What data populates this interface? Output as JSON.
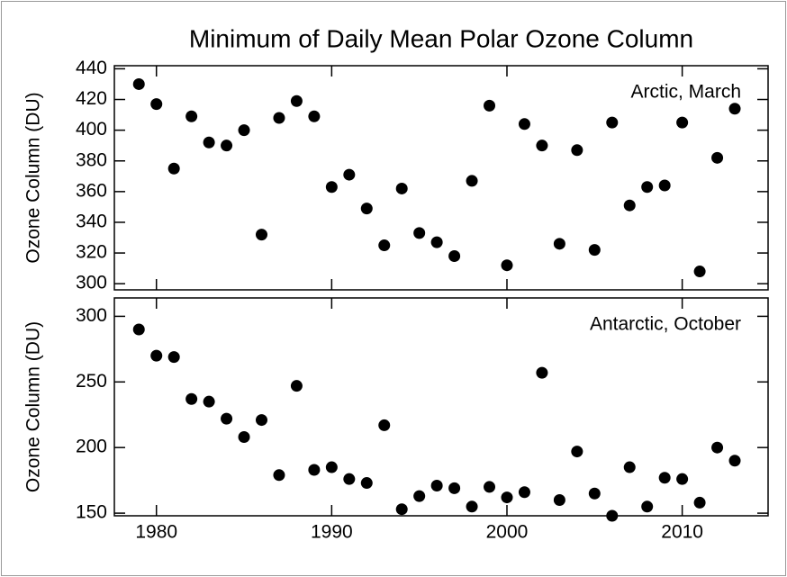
{
  "chart_data": [
    {
      "type": "line",
      "title": "Minimum of Daily Mean Polar Ozone Column",
      "annotation": "Arctic, March",
      "ylabel": "Ozone Column (DU)",
      "x": [
        1979,
        1980,
        1981,
        1982,
        1983,
        1984,
        1985,
        1986,
        1987,
        1988,
        1989,
        1990,
        1991,
        1992,
        1993,
        1994,
        1995,
        1996,
        1997,
        1998,
        1999,
        2000,
        2001,
        2002,
        2003,
        2004,
        2005,
        2006,
        2007,
        2008,
        2009,
        2010,
        2011,
        2012,
        2013
      ],
      "series": [
        {
          "color": "#000000",
          "values": [
            430,
            417,
            375,
            409,
            392,
            390,
            400,
            332,
            408,
            419,
            409,
            363,
            371,
            349,
            325,
            362,
            333,
            327,
            318,
            367,
            416,
            312,
            404,
            390,
            326,
            387,
            322,
            405,
            351,
            363,
            364,
            405,
            308,
            382,
            414
          ]
        }
      ],
      "xlim": [
        1977.6,
        2014.9
      ],
      "xticks": [
        1980,
        1990,
        2000,
        2010
      ],
      "ylim": [
        296,
        442
      ],
      "yticks": [
        300,
        320,
        340,
        360,
        380,
        400,
        420,
        440
      ]
    },
    {
      "type": "line",
      "annotation": "Antarctic, October",
      "ylabel": "Ozone Column (DU)",
      "x": [
        1979,
        1980,
        1981,
        1982,
        1983,
        1984,
        1985,
        1986,
        1987,
        1988,
        1989,
        1990,
        1991,
        1992,
        1993,
        1994,
        1995,
        1996,
        1997,
        1998,
        1999,
        2000,
        2001,
        2002,
        2003,
        2004,
        2005,
        2006,
        2007,
        2008,
        2009,
        2010,
        2011,
        2012,
        2013
      ],
      "series": [
        {
          "color": "#000000",
          "values": [
            290,
            270,
            269,
            237,
            235,
            222,
            208,
            221,
            179,
            247,
            183,
            185,
            176,
            173,
            217,
            153,
            163,
            171,
            169,
            155,
            170,
            162,
            166,
            257,
            160,
            197,
            165,
            148,
            185,
            155,
            177,
            176,
            158,
            200,
            190
          ]
        }
      ],
      "xlim": [
        1977.6,
        2014.9
      ],
      "xticks": [
        1980,
        1990,
        2000,
        2010
      ],
      "ylim": [
        148,
        314
      ],
      "yticks": [
        150,
        200,
        250,
        300
      ]
    }
  ]
}
